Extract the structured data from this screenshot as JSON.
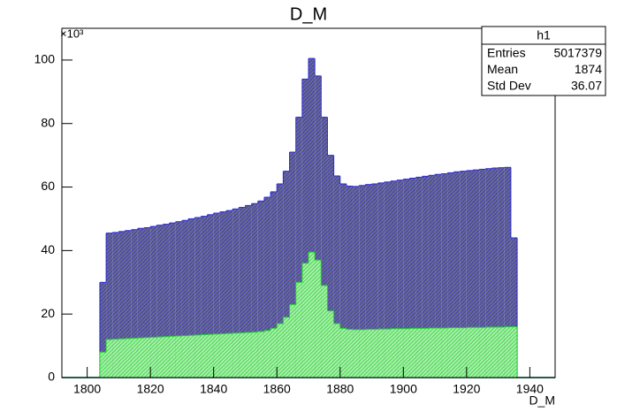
{
  "chart_data": {
    "type": "histogram",
    "title": "D_M",
    "x_label": "D_M",
    "y_scale_label": "×10³",
    "xlim": [
      1792,
      1948
    ],
    "xticks": [
      1800,
      1820,
      1840,
      1860,
      1880,
      1900,
      1920,
      1940
    ],
    "ylim": [
      0,
      110
    ],
    "yticks": [
      0,
      20,
      40,
      60,
      80,
      100
    ],
    "bins": [
      1804,
      1806,
      1808,
      1810,
      1812,
      1814,
      1816,
      1818,
      1820,
      1822,
      1824,
      1826,
      1828,
      1830,
      1832,
      1834,
      1836,
      1838,
      1840,
      1842,
      1844,
      1846,
      1848,
      1850,
      1852,
      1854,
      1856,
      1858,
      1860,
      1862,
      1864,
      1866,
      1868,
      1870,
      1872,
      1874,
      1876,
      1878,
      1880,
      1882,
      1884,
      1886,
      1888,
      1890,
      1892,
      1894,
      1896,
      1898,
      1900,
      1902,
      1904,
      1906,
      1908,
      1910,
      1912,
      1914,
      1916,
      1918,
      1920,
      1922,
      1924,
      1926,
      1928,
      1930,
      1932,
      1934,
      1936
    ],
    "series": [
      {
        "name": "h1",
        "color": "#2b2bd6",
        "values": [
          30,
          45.5,
          45.7,
          46,
          46.3,
          46.6,
          47,
          47.2,
          47.6,
          48,
          48.3,
          48.7,
          49.1,
          49.5,
          50,
          50.4,
          50.8,
          51.3,
          51.8,
          52.2,
          52.6,
          53.1,
          53.6,
          54.2,
          54.8,
          55.6,
          56.8,
          58.5,
          61,
          65,
          71,
          82,
          94,
          100.5,
          95,
          82,
          70,
          63.5,
          61,
          60.3,
          60.2,
          60.5,
          60.8,
          61,
          61.3,
          61.6,
          61.9,
          62.2,
          62.5,
          62.8,
          63.1,
          63.4,
          63.7,
          64,
          64.2,
          64.5,
          64.8,
          65,
          65.2,
          65.4,
          65.6,
          65.8,
          66,
          66.1,
          66.2,
          44
        ]
      },
      {
        "color": "#22cc33",
        "values": [
          8,
          12,
          12.1,
          12.2,
          12.3,
          12.4,
          12.5,
          12.6,
          12.7,
          12.8,
          12.9,
          13,
          13.1,
          13.2,
          13.3,
          13.4,
          13.5,
          13.6,
          13.7,
          13.8,
          13.9,
          14,
          14.1,
          14.2,
          14.3,
          14.5,
          14.8,
          15.5,
          17,
          19,
          23,
          30,
          36,
          39.5,
          37,
          29,
          21,
          17,
          15.5,
          15.2,
          15.1,
          15.1,
          15.2,
          15.2,
          15.3,
          15.3,
          15.4,
          15.4,
          15.4,
          15.5,
          15.5,
          15.5,
          15.6,
          15.6,
          15.6,
          15.7,
          15.7,
          15.7,
          15.8,
          15.8,
          15.8,
          15.9,
          15.9,
          15.9,
          16,
          16
        ]
      }
    ],
    "stats": {
      "rows": [
        {
          "label": "Entries",
          "value": 5017379
        },
        {
          "label": "Mean",
          "value": 1874
        },
        {
          "label": "Std Dev",
          "value": 36.07
        }
      ]
    }
  }
}
